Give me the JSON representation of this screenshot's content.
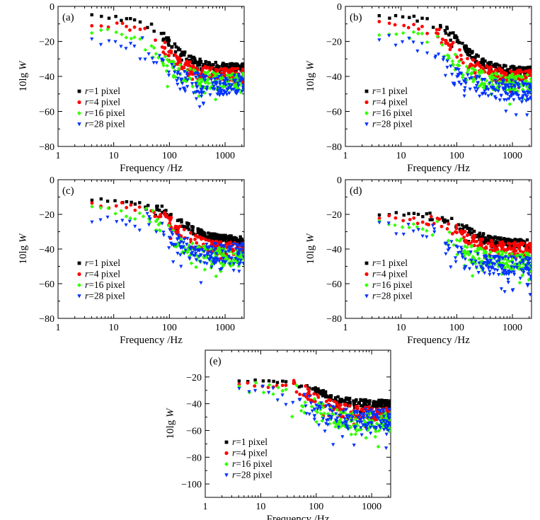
{
  "chart_data": [
    {
      "type": "scatter",
      "panel_label": "(a)",
      "xlabel": "Frequency /Hz",
      "ylabel_prefix": "10lg ",
      "ylabel_var": "W",
      "xscale": "log",
      "xlim": [
        1,
        2200
      ],
      "ylim": [
        -80,
        0
      ],
      "xticks": [
        1,
        10,
        100,
        1000
      ],
      "xtick_labels": [
        "1",
        "10",
        "100",
        "1000"
      ],
      "yticks": [
        -80,
        -60,
        -40,
        -20,
        0
      ],
      "ytick_labels": [
        "−80",
        "−60",
        "−40",
        "−20",
        "0"
      ],
      "legend_position": "bottom-left",
      "series": [
        {
          "name_var": "r",
          "name_rest": "=1 pixel",
          "color": "#000000",
          "marker": "square",
          "profile": {
            "start": -6,
            "knee_hz": 100,
            "floor": -35,
            "spread": 2.2
          }
        },
        {
          "name_var": "r",
          "name_rest": "=4 pixel",
          "color": "#ff0000",
          "marker": "circle",
          "profile": {
            "start": -8,
            "knee_hz": 80,
            "floor": -39,
            "spread": 3.5
          }
        },
        {
          "name_var": "r",
          "name_rest": "=16 pixel",
          "color": "#33ff00",
          "marker": "diamond",
          "profile": {
            "start": -11,
            "knee_hz": 60,
            "floor": -43,
            "spread": 5
          }
        },
        {
          "name_var": "r",
          "name_rest": "=28 pixel",
          "color": "#0033ff",
          "marker": "triangle-down",
          "profile": {
            "start": -14,
            "knee_hz": 50,
            "floor": -45,
            "spread": 6
          }
        }
      ]
    },
    {
      "type": "scatter",
      "panel_label": "(b)",
      "xlabel": "Frequency /Hz",
      "ylabel_prefix": "10lg ",
      "ylabel_var": "W",
      "xscale": "log",
      "xlim": [
        1,
        2200
      ],
      "ylim": [
        -80,
        0
      ],
      "xticks": [
        1,
        10,
        100,
        1000
      ],
      "xtick_labels": [
        "1",
        "10",
        "100",
        "1000"
      ],
      "yticks": [
        -80,
        -60,
        -40,
        -20,
        0
      ],
      "ytick_labels": [
        "−80",
        "−60",
        "−40",
        "−20",
        "0"
      ],
      "legend_position": "bottom-left",
      "series": [
        {
          "name_var": "r",
          "name_rest": "=1 pixel",
          "color": "#000000",
          "marker": "square",
          "profile": {
            "start": -6,
            "knee_hz": 120,
            "floor": -37,
            "spread": 2.2
          }
        },
        {
          "name_var": "r",
          "name_rest": "=4 pixel",
          "color": "#ff0000",
          "marker": "circle",
          "profile": {
            "start": -9,
            "knee_hz": 90,
            "floor": -40,
            "spread": 3.5
          }
        },
        {
          "name_var": "r",
          "name_rest": "=16 pixel",
          "color": "#33ff00",
          "marker": "diamond",
          "profile": {
            "start": -11,
            "knee_hz": 70,
            "floor": -44,
            "spread": 5
          }
        },
        {
          "name_var": "r",
          "name_rest": "=28 pixel",
          "color": "#0033ff",
          "marker": "triangle-down",
          "profile": {
            "start": -13,
            "knee_hz": 50,
            "floor": -48,
            "spread": 6
          }
        }
      ]
    },
    {
      "type": "scatter",
      "panel_label": "(c)",
      "xlabel": "Frequency /Hz",
      "ylabel_prefix": "10lg ",
      "ylabel_var": "W",
      "xscale": "log",
      "xlim": [
        1,
        2200
      ],
      "ylim": [
        -80,
        0
      ],
      "xticks": [
        1,
        10,
        100,
        1000
      ],
      "xtick_labels": [
        "1",
        "10",
        "100",
        "1000"
      ],
      "yticks": [
        -80,
        -60,
        -40,
        -20,
        0
      ],
      "ytick_labels": [
        "−80",
        "−60",
        "−40",
        "−20",
        "0"
      ],
      "legend_position": "bottom-left",
      "series": [
        {
          "name_var": "r",
          "name_rest": "=1 pixel",
          "color": "#000000",
          "marker": "square",
          "profile": {
            "start": -12,
            "knee_hz": 150,
            "floor": -35,
            "spread": 2.2
          }
        },
        {
          "name_var": "r",
          "name_rest": "=4 pixel",
          "color": "#ff0000",
          "marker": "circle",
          "profile": {
            "start": -13,
            "knee_hz": 120,
            "floor": -40,
            "spread": 3.5
          }
        },
        {
          "name_var": "r",
          "name_rest": "=16 pixel",
          "color": "#33ff00",
          "marker": "diamond",
          "profile": {
            "start": -15,
            "knee_hz": 90,
            "floor": -45,
            "spread": 5
          }
        },
        {
          "name_var": "r",
          "name_rest": "=28 pixel",
          "color": "#0033ff",
          "marker": "triangle-down",
          "profile": {
            "start": -17,
            "knee_hz": 70,
            "floor": -43,
            "spread": 6
          }
        }
      ]
    },
    {
      "type": "scatter",
      "panel_label": "(d)",
      "xlabel": "Frequency /Hz",
      "ylabel_prefix": "10lg ",
      "ylabel_var": "W",
      "xscale": "log",
      "xlim": [
        1,
        2200
      ],
      "ylim": [
        -80,
        0
      ],
      "xticks": [
        1,
        10,
        100,
        1000
      ],
      "xtick_labels": [
        "1",
        "10",
        "100",
        "1000"
      ],
      "yticks": [
        -80,
        -60,
        -40,
        -20,
        0
      ],
      "ytick_labels": [
        "−80",
        "−60",
        "−40",
        "−20",
        "0"
      ],
      "legend_position": "bottom-left",
      "series": [
        {
          "name_var": "r",
          "name_rest": "=1 pixel",
          "color": "#000000",
          "marker": "square",
          "profile": {
            "start": -20,
            "knee_hz": 150,
            "floor": -37,
            "spread": 2.2
          }
        },
        {
          "name_var": "r",
          "name_rest": "=4 pixel",
          "color": "#ff0000",
          "marker": "circle",
          "profile": {
            "start": -21,
            "knee_hz": 110,
            "floor": -40,
            "spread": 3.5
          }
        },
        {
          "name_var": "r",
          "name_rest": "=16 pixel",
          "color": "#33ff00",
          "marker": "diamond",
          "profile": {
            "start": -22,
            "knee_hz": 80,
            "floor": -47,
            "spread": 5
          }
        },
        {
          "name_var": "r",
          "name_rest": "=28 pixel",
          "color": "#0033ff",
          "marker": "triangle-down",
          "profile": {
            "start": -23,
            "knee_hz": 60,
            "floor": -50,
            "spread": 6
          }
        }
      ]
    },
    {
      "type": "scatter",
      "panel_label": "(e)",
      "xlabel": "Frequency /Hz",
      "ylabel_prefix": "10lg ",
      "ylabel_var": "W",
      "xscale": "log",
      "xlim": [
        1,
        2200
      ],
      "ylim": [
        -110,
        0
      ],
      "xticks": [
        1,
        10,
        100,
        1000
      ],
      "xtick_labels": [
        "1",
        "10",
        "100",
        "1000"
      ],
      "yticks": [
        -100,
        -80,
        -60,
        -40,
        -20
      ],
      "ytick_labels": [
        "−100",
        "−80",
        "−60",
        "−40",
        "−20"
      ],
      "legend_position": "bottom-left",
      "series": [
        {
          "name_var": "r",
          "name_rest": "=1 pixel",
          "color": "#000000",
          "marker": "square",
          "profile": {
            "start": -22,
            "knee_hz": 120,
            "floor": -40,
            "spread": 2.5
          }
        },
        {
          "name_var": "r",
          "name_rest": "=4 pixel",
          "color": "#ff0000",
          "marker": "circle",
          "profile": {
            "start": -23,
            "knee_hz": 100,
            "floor": -48,
            "spread": 5
          }
        },
        {
          "name_var": "r",
          "name_rest": "=16 pixel",
          "color": "#33ff00",
          "marker": "diamond",
          "profile": {
            "start": -24,
            "knee_hz": 70,
            "floor": -54,
            "spread": 7
          }
        },
        {
          "name_var": "r",
          "name_rest": "=28 pixel",
          "color": "#0033ff",
          "marker": "triangle-down",
          "profile": {
            "start": -26,
            "knee_hz": 60,
            "floor": -52,
            "spread": 8
          }
        }
      ]
    }
  ]
}
